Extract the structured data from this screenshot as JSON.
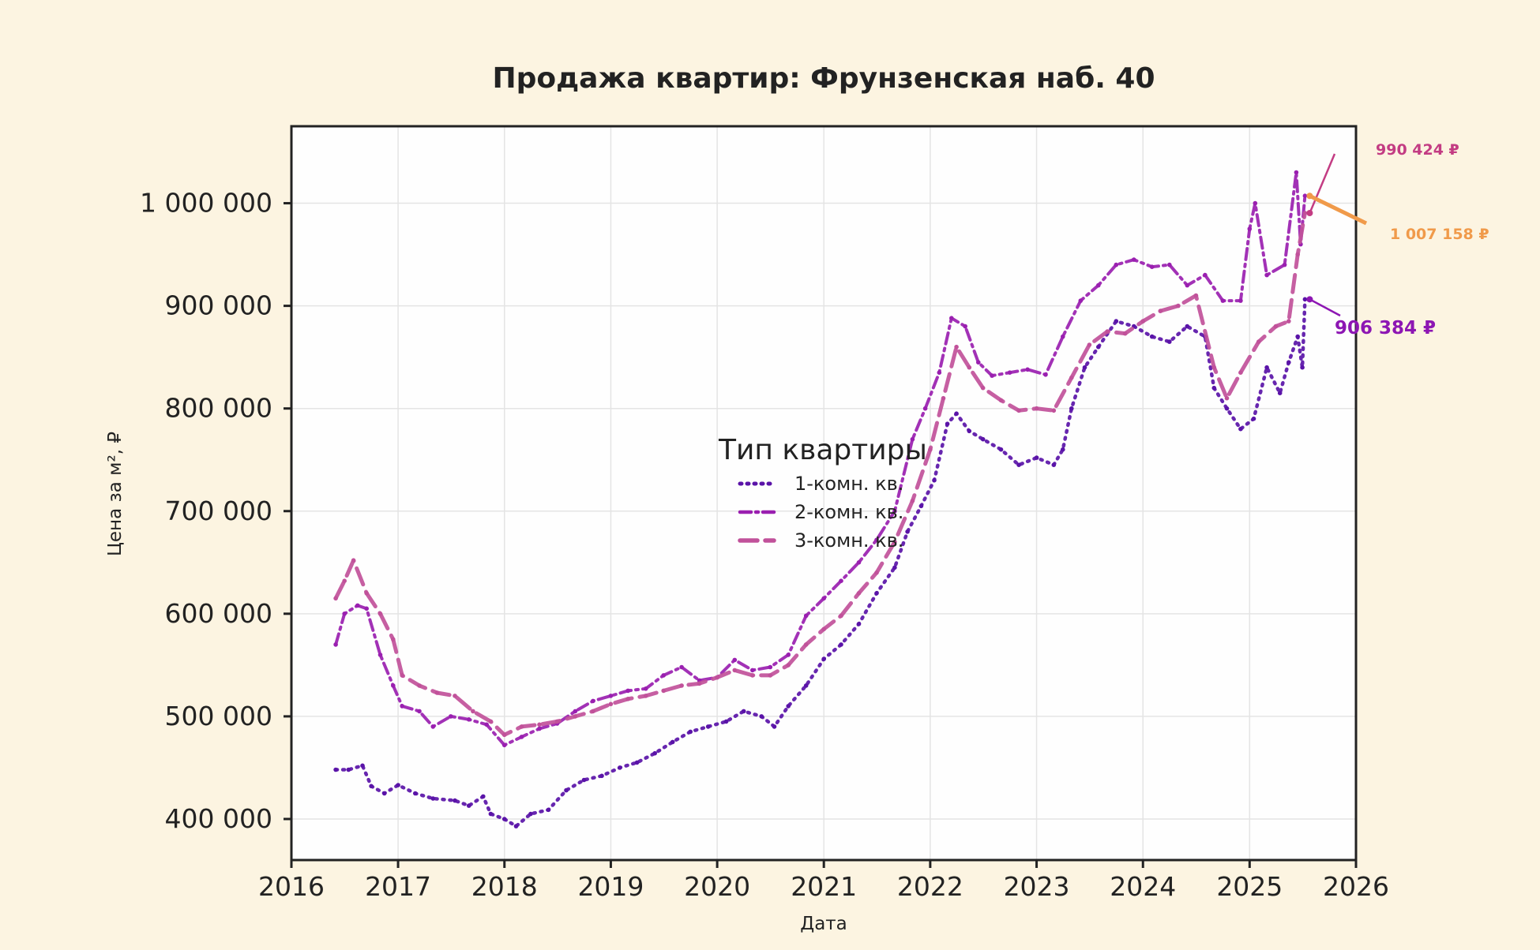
{
  "colors": {
    "background": "#fcf4e1",
    "plot_bg": "#fefefe",
    "grid": "#e4e4e4",
    "axis": "#222222",
    "one_room": "#5a13a8",
    "two_room": "#9a1fb0",
    "three_room": "#c1519a",
    "annotation_top": "#c33c83",
    "annotation_mid": "#f09a4a",
    "annotation_low": "#8d16b3"
  },
  "chart_data": {
    "type": "line",
    "title": "Продажа квартир: Фрунзенская наб. 40",
    "xlabel": "Дата",
    "ylabel": "Цена за м², ₽",
    "xlim": [
      "2016-01-01",
      "2026-01-01"
    ],
    "ylim": [
      360000,
      1075000
    ],
    "grid": true,
    "x_ticks": [
      "2016",
      "2017",
      "2018",
      "2019",
      "2020",
      "2021",
      "2022",
      "2023",
      "2024",
      "2025",
      "2026"
    ],
    "y_ticks": [
      {
        "value": 400000,
        "label": "400 000"
      },
      {
        "value": 500000,
        "label": "500 000"
      },
      {
        "value": 600000,
        "label": "600 000"
      },
      {
        "value": 700000,
        "label": "700 000"
      },
      {
        "value": 800000,
        "label": "800 000"
      },
      {
        "value": 900000,
        "label": "900 000"
      },
      {
        "value": 1000000,
        "label": "1 000 000"
      }
    ],
    "legend": {
      "title": "Тип квартиры",
      "placement": "center"
    },
    "series": [
      {
        "name": "1-комн. кв.",
        "style": "dotted",
        "color_key": "one_room",
        "points": [
          [
            "2016-06-01",
            448000
          ],
          [
            "2016-07-15",
            448000
          ],
          [
            "2016-09-01",
            452000
          ],
          [
            "2016-10-01",
            432000
          ],
          [
            "2016-11-15",
            425000
          ],
          [
            "2017-01-01",
            433000
          ],
          [
            "2017-03-01",
            425000
          ],
          [
            "2017-05-01",
            420000
          ],
          [
            "2017-07-15",
            418000
          ],
          [
            "2017-09-01",
            413000
          ],
          [
            "2017-10-20",
            422000
          ],
          [
            "2017-11-15",
            405000
          ],
          [
            "2018-01-01",
            400000
          ],
          [
            "2018-02-10",
            393000
          ],
          [
            "2018-04-01",
            405000
          ],
          [
            "2018-06-01",
            409000
          ],
          [
            "2018-08-01",
            428000
          ],
          [
            "2018-10-01",
            438000
          ],
          [
            "2018-12-01",
            442000
          ],
          [
            "2019-02-01",
            450000
          ],
          [
            "2019-04-01",
            455000
          ],
          [
            "2019-06-01",
            464000
          ],
          [
            "2019-08-01",
            475000
          ],
          [
            "2019-10-01",
            485000
          ],
          [
            "2019-12-01",
            490000
          ],
          [
            "2020-02-01",
            495000
          ],
          [
            "2020-04-01",
            505000
          ],
          [
            "2020-06-01",
            500000
          ],
          [
            "2020-07-15",
            490000
          ],
          [
            "2020-09-01",
            510000
          ],
          [
            "2020-11-01",
            530000
          ],
          [
            "2021-01-01",
            556000
          ],
          [
            "2021-03-01",
            570000
          ],
          [
            "2021-05-01",
            590000
          ],
          [
            "2021-07-01",
            620000
          ],
          [
            "2021-09-01",
            645000
          ],
          [
            "2021-10-15",
            680000
          ],
          [
            "2021-12-01",
            705000
          ],
          [
            "2022-01-15",
            730000
          ],
          [
            "2022-03-01",
            785000
          ],
          [
            "2022-04-01",
            795000
          ],
          [
            "2022-05-15",
            778000
          ],
          [
            "2022-07-01",
            770000
          ],
          [
            "2022-09-01",
            760000
          ],
          [
            "2022-11-01",
            745000
          ],
          [
            "2023-01-01",
            752000
          ],
          [
            "2023-03-01",
            745000
          ],
          [
            "2023-04-01",
            760000
          ],
          [
            "2023-05-01",
            800000
          ],
          [
            "2023-06-15",
            840000
          ],
          [
            "2023-08-01",
            860000
          ],
          [
            "2023-10-01",
            885000
          ],
          [
            "2023-12-01",
            880000
          ],
          [
            "2024-02-01",
            870000
          ],
          [
            "2024-04-01",
            865000
          ],
          [
            "2024-06-01",
            880000
          ],
          [
            "2024-08-01",
            870000
          ],
          [
            "2024-09-01",
            820000
          ],
          [
            "2024-10-15",
            800000
          ],
          [
            "2024-12-01",
            780000
          ],
          [
            "2025-01-15",
            790000
          ],
          [
            "2025-03-01",
            840000
          ],
          [
            "2025-04-15",
            815000
          ],
          [
            "2025-05-15",
            845000
          ],
          [
            "2025-06-15",
            870000
          ],
          [
            "2025-07-01",
            840000
          ],
          [
            "2025-07-10",
            906384
          ]
        ]
      },
      {
        "name": "2-комн. кв.",
        "style": "dashdot",
        "color_key": "two_room",
        "points": [
          [
            "2016-06-01",
            570000
          ],
          [
            "2016-07-01",
            600000
          ],
          [
            "2016-08-15",
            608000
          ],
          [
            "2016-09-15",
            605000
          ],
          [
            "2016-11-01",
            560000
          ],
          [
            "2016-12-15",
            530000
          ],
          [
            "2017-01-15",
            510000
          ],
          [
            "2017-03-15",
            505000
          ],
          [
            "2017-05-01",
            490000
          ],
          [
            "2017-07-01",
            500000
          ],
          [
            "2017-09-01",
            497000
          ],
          [
            "2017-11-01",
            492000
          ],
          [
            "2018-01-01",
            472000
          ],
          [
            "2018-03-01",
            480000
          ],
          [
            "2018-05-01",
            488000
          ],
          [
            "2018-07-01",
            493000
          ],
          [
            "2018-09-01",
            505000
          ],
          [
            "2018-11-01",
            515000
          ],
          [
            "2019-01-01",
            520000
          ],
          [
            "2019-03-01",
            525000
          ],
          [
            "2019-05-01",
            527000
          ],
          [
            "2019-07-01",
            540000
          ],
          [
            "2019-09-01",
            548000
          ],
          [
            "2019-11-01",
            535000
          ],
          [
            "2020-01-01",
            538000
          ],
          [
            "2020-03-01",
            555000
          ],
          [
            "2020-05-01",
            545000
          ],
          [
            "2020-07-01",
            548000
          ],
          [
            "2020-09-01",
            560000
          ],
          [
            "2020-11-01",
            598000
          ],
          [
            "2021-01-01",
            615000
          ],
          [
            "2021-03-01",
            632000
          ],
          [
            "2021-05-01",
            650000
          ],
          [
            "2021-07-01",
            672000
          ],
          [
            "2021-09-01",
            700000
          ],
          [
            "2021-11-01",
            770000
          ],
          [
            "2021-12-15",
            800000
          ],
          [
            "2022-02-01",
            835000
          ],
          [
            "2022-03-15",
            888000
          ],
          [
            "2022-05-01",
            880000
          ],
          [
            "2022-06-15",
            845000
          ],
          [
            "2022-08-01",
            832000
          ],
          [
            "2022-10-01",
            835000
          ],
          [
            "2022-12-01",
            838000
          ],
          [
            "2023-02-01",
            833000
          ],
          [
            "2023-04-01",
            870000
          ],
          [
            "2023-06-01",
            905000
          ],
          [
            "2023-08-01",
            920000
          ],
          [
            "2023-10-01",
            940000
          ],
          [
            "2023-12-01",
            945000
          ],
          [
            "2024-02-01",
            938000
          ],
          [
            "2024-04-01",
            940000
          ],
          [
            "2024-06-01",
            920000
          ],
          [
            "2024-08-01",
            930000
          ],
          [
            "2024-10-01",
            905000
          ],
          [
            "2024-12-01",
            905000
          ],
          [
            "2025-01-01",
            975000
          ],
          [
            "2025-01-20",
            1000000
          ],
          [
            "2025-03-01",
            930000
          ],
          [
            "2025-05-01",
            940000
          ],
          [
            "2025-06-10",
            1030000
          ],
          [
            "2025-06-25",
            960000
          ],
          [
            "2025-07-10",
            1007158
          ]
        ]
      },
      {
        "name": "3-комн. кв.",
        "style": "dashed",
        "color_key": "three_room",
        "points": [
          [
            "2016-06-01",
            615000
          ],
          [
            "2016-07-01",
            632000
          ],
          [
            "2016-08-01",
            652000
          ],
          [
            "2016-09-15",
            620000
          ],
          [
            "2016-11-01",
            600000
          ],
          [
            "2016-12-15",
            575000
          ],
          [
            "2017-01-15",
            540000
          ],
          [
            "2017-03-15",
            530000
          ],
          [
            "2017-05-15",
            523000
          ],
          [
            "2017-07-15",
            520000
          ],
          [
            "2017-09-15",
            505000
          ],
          [
            "2017-11-15",
            495000
          ],
          [
            "2018-01-01",
            482000
          ],
          [
            "2018-03-01",
            490000
          ],
          [
            "2018-05-01",
            492000
          ],
          [
            "2018-07-01",
            495000
          ],
          [
            "2018-09-01",
            500000
          ],
          [
            "2018-11-01",
            505000
          ],
          [
            "2019-01-01",
            512000
          ],
          [
            "2019-03-01",
            517000
          ],
          [
            "2019-05-01",
            520000
          ],
          [
            "2019-07-01",
            525000
          ],
          [
            "2019-09-01",
            530000
          ],
          [
            "2019-11-01",
            532000
          ],
          [
            "2020-01-01",
            538000
          ],
          [
            "2020-03-01",
            545000
          ],
          [
            "2020-05-01",
            540000
          ],
          [
            "2020-07-01",
            540000
          ],
          [
            "2020-09-01",
            550000
          ],
          [
            "2020-11-01",
            570000
          ],
          [
            "2021-01-01",
            585000
          ],
          [
            "2021-03-01",
            598000
          ],
          [
            "2021-05-01",
            620000
          ],
          [
            "2021-07-01",
            640000
          ],
          [
            "2021-09-01",
            670000
          ],
          [
            "2021-11-01",
            710000
          ],
          [
            "2022-01-01",
            760000
          ],
          [
            "2022-02-15",
            810000
          ],
          [
            "2022-04-01",
            860000
          ],
          [
            "2022-05-15",
            840000
          ],
          [
            "2022-07-01",
            820000
          ],
          [
            "2022-09-01",
            808000
          ],
          [
            "2022-11-01",
            798000
          ],
          [
            "2023-01-01",
            800000
          ],
          [
            "2023-03-01",
            798000
          ],
          [
            "2023-05-01",
            830000
          ],
          [
            "2023-07-01",
            862000
          ],
          [
            "2023-09-01",
            875000
          ],
          [
            "2023-11-01",
            873000
          ],
          [
            "2024-01-01",
            885000
          ],
          [
            "2024-03-01",
            895000
          ],
          [
            "2024-05-01",
            900000
          ],
          [
            "2024-07-01",
            910000
          ],
          [
            "2024-09-01",
            840000
          ],
          [
            "2024-10-15",
            810000
          ],
          [
            "2024-12-01",
            835000
          ],
          [
            "2025-02-01",
            865000
          ],
          [
            "2025-04-01",
            880000
          ],
          [
            "2025-05-15",
            885000
          ],
          [
            "2025-06-15",
            950000
          ],
          [
            "2025-07-10",
            990424
          ]
        ]
      }
    ],
    "annotations": [
      {
        "text": "990 424 ₽",
        "x": "2025-07-10",
        "value": 990424,
        "color_key": "annotation_top"
      },
      {
        "text": "1 007 158 ₽",
        "x": "2025-07-10",
        "value": 1007158,
        "color_key": "annotation_mid"
      },
      {
        "text": "906 384 ₽",
        "x": "2025-07-10",
        "value": 906384,
        "color_key": "annotation_low"
      }
    ]
  }
}
